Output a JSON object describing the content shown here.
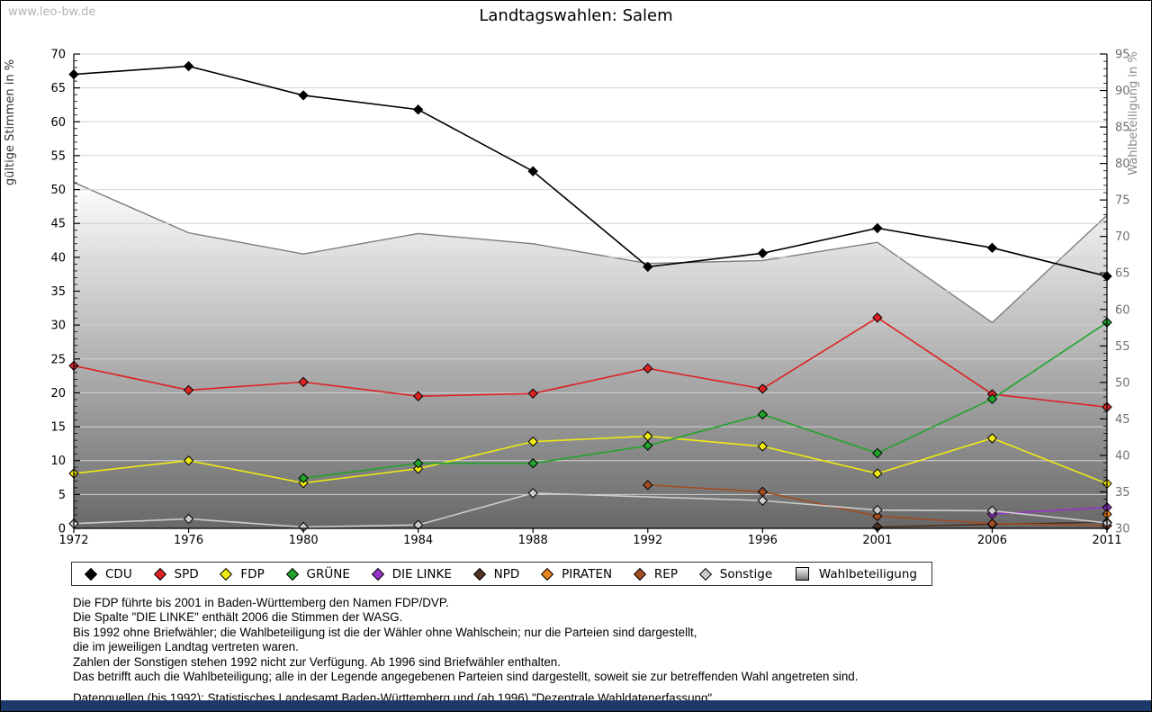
{
  "header": {
    "title": "Landtagswahlen: Salem",
    "watermark": "www.leo-bw.de"
  },
  "chart_data": {
    "type": "line",
    "title": "Landtagswahlen: Salem",
    "x": [
      "1972",
      "1976",
      "1980",
      "1984",
      "1988",
      "1992",
      "1996",
      "2001",
      "2006",
      "2011"
    ],
    "left_axis": {
      "title": "gültige Stimmen in %",
      "min": 0,
      "max": 70,
      "step": 5,
      "grid": true
    },
    "right_axis": {
      "title": "Wahlbeteiligung in %",
      "min": 30,
      "max": 95,
      "step": 5
    },
    "series": [
      {
        "name": "CDU",
        "color": "#000000",
        "values": [
          67.0,
          68.2,
          63.9,
          61.8,
          52.7,
          38.6,
          40.6,
          44.3,
          41.4,
          37.2
        ]
      },
      {
        "name": "SPD",
        "color": "#dd2222",
        "values": [
          24.0,
          20.4,
          21.6,
          19.5,
          19.9,
          23.6,
          20.6,
          31.1,
          19.8,
          17.9
        ]
      },
      {
        "name": "FDP",
        "color": "#f0ea12",
        "values": [
          8.1,
          10.0,
          6.7,
          8.8,
          12.8,
          13.6,
          12.1,
          8.1,
          13.3,
          6.6
        ]
      },
      {
        "name": "GRÜNE",
        "color": "#21a32b",
        "values": [
          null,
          null,
          7.4,
          9.6,
          9.6,
          12.2,
          16.8,
          11.1,
          19.1,
          30.4
        ]
      },
      {
        "name": "DIE LINKE",
        "color": "#9633cc",
        "values": [
          null,
          null,
          null,
          null,
          null,
          null,
          null,
          null,
          2.1,
          3.1
        ]
      },
      {
        "name": "NPD",
        "color": "#4e3423",
        "values": [
          null,
          null,
          null,
          null,
          null,
          null,
          null,
          0.2,
          0.6,
          0.9
        ]
      },
      {
        "name": "PIRATEN",
        "color": "#e8851c",
        "values": [
          null,
          null,
          null,
          null,
          null,
          null,
          null,
          null,
          null,
          2.1
        ]
      },
      {
        "name": "REP",
        "color": "#a14c22",
        "values": [
          null,
          null,
          null,
          null,
          null,
          6.4,
          5.4,
          1.8,
          0.7,
          0.4
        ]
      },
      {
        "name": "Sonstige",
        "color": "#cccccc",
        "values": [
          0.7,
          1.4,
          0.2,
          0.5,
          5.2,
          null,
          4.1,
          2.7,
          2.6,
          0.8
        ]
      }
    ],
    "turnout": {
      "name": "Wahlbeteiligung",
      "axis": "right",
      "values": [
        77.4,
        70.5,
        67.6,
        70.4,
        69.0,
        66.3,
        66.7,
        69.2,
        58.2,
        72.9
      ],
      "fill_top": "#fefefe",
      "fill_bottom": "#686868",
      "edge_color": "#7d7d7d"
    },
    "grid_color": "#d4d4d4",
    "legend_position": "bottom"
  },
  "legend": {
    "items": [
      {
        "label": "CDU",
        "color": "#000000",
        "shape": "diamond"
      },
      {
        "label": "SPD",
        "color": "#dd2222",
        "shape": "diamond"
      },
      {
        "label": "FDP",
        "color": "#f0ea12",
        "shape": "diamond"
      },
      {
        "label": "GRÜNE",
        "color": "#21a32b",
        "shape": "diamond"
      },
      {
        "label": "DIE LINKE",
        "color": "#9633cc",
        "shape": "diamond"
      },
      {
        "label": "NPD",
        "color": "#4e3423",
        "shape": "diamond"
      },
      {
        "label": "PIRATEN",
        "color": "#e8851c",
        "shape": "diamond"
      },
      {
        "label": "REP",
        "color": "#a14c22",
        "shape": "diamond"
      },
      {
        "label": "Sonstige",
        "color": "#cccccc",
        "shape": "diamond"
      },
      {
        "label": "Wahlbeteiligung",
        "color": "#aaaaaa",
        "shape": "square-gradient"
      }
    ]
  },
  "footnotes": {
    "lines": [
      "Die FDP führte bis 2001 in Baden-Württemberg den Namen FDP/DVP.",
      "Die Spalte \"DIE LINKE\" enthält 2006 die Stimmen der WASG.",
      "Bis 1992 ohne Briefwähler; die Wahlbeteiligung ist die der Wähler ohne Wahlschein; nur die Parteien sind dargestellt,",
      "die im jeweiligen Landtag vertreten waren.",
      "Zahlen der Sonstigen stehen 1992 nicht zur Verfügung. Ab 1996 sind Briefwähler enthalten.",
      "Das betrifft auch die Wahlbeteiligung; alle in der Legende angegebenen Parteien sind dargestellt, soweit sie zur betreffenden Wahl angetreten sind.",
      "",
      "Datenquellen (bis 1992): Statistisches Landesamt Baden-Württemberg und (ab 1996) \"Dezentrale Wahldatenerfassung\"."
    ]
  }
}
